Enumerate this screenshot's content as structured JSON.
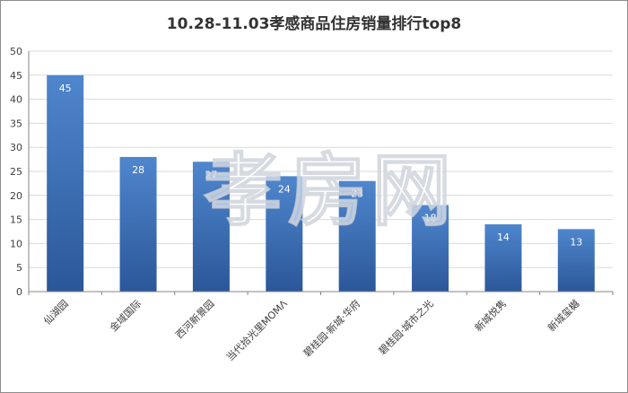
{
  "chart_data": {
    "type": "bar",
    "title": "10.28-11.03孝感商品住房销量排行top8",
    "categories": [
      "仙湖园",
      "金域国际",
      "西河新景园",
      "当代拾光里MOMΛ",
      "碧桂园·新城·华府",
      "碧桂园·城市之光",
      "新城悦隽",
      "新城玺樾"
    ],
    "values": [
      45,
      28,
      27,
      24,
      23,
      18,
      14,
      13
    ],
    "ylim": [
      0,
      50
    ],
    "yticks": [
      0,
      5,
      10,
      15,
      20,
      25,
      30,
      35,
      40,
      45,
      50
    ],
    "xlabel": "",
    "ylabel": "",
    "grid": true,
    "legend": "none",
    "colors": {
      "bar_top": "#4f86cd",
      "bar_bottom": "#2b5799",
      "grid": "#d9d9d9",
      "axis": "#868686",
      "text": "#404040"
    }
  },
  "watermark": "孝房网"
}
